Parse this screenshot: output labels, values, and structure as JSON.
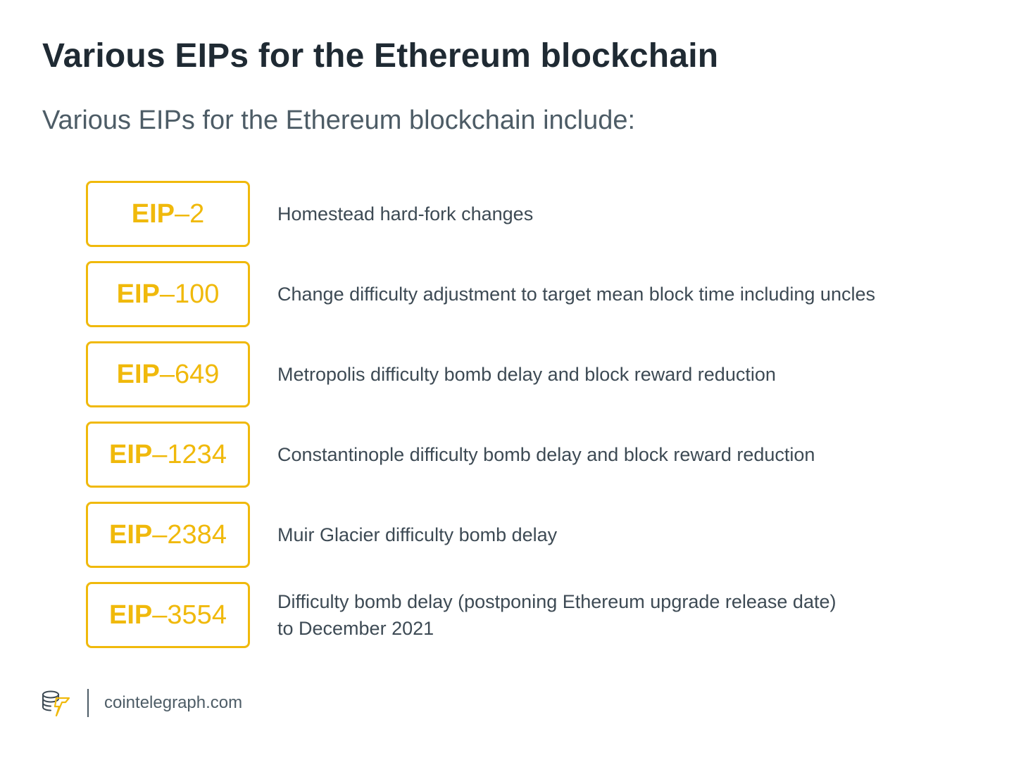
{
  "header": {
    "title": "Various EIPs for the Ethereum blockchain",
    "subtitle": "Various EIPs for the Ethereum blockchain include:"
  },
  "eips": [
    {
      "prefix": "EIP",
      "number": "–2",
      "desc_line1": "Homestead hard-fork changes",
      "desc_line2": ""
    },
    {
      "prefix": "EIP",
      "number": "–100",
      "desc_line1": "Change difficulty adjustment to target mean block time including uncles",
      "desc_line2": ""
    },
    {
      "prefix": "EIP",
      "number": "–649",
      "desc_line1": "Metropolis difficulty bomb delay and block reward reduction",
      "desc_line2": ""
    },
    {
      "prefix": "EIP",
      "number": "–1234",
      "desc_line1": "Constantinople difficulty bomb delay and block reward reduction",
      "desc_line2": ""
    },
    {
      "prefix": "EIP",
      "number": "–2384",
      "desc_line1": "Muir Glacier difficulty bomb delay",
      "desc_line2": ""
    },
    {
      "prefix": "EIP",
      "number": "–3554",
      "desc_line1": "Difficulty bomb delay (postponing Ethereum upgrade release date)",
      "desc_line2": "to December 2021"
    }
  ],
  "footer": {
    "logo_icon": "cointelegraph-logo-icon",
    "site": "cointelegraph.com"
  },
  "colors": {
    "accent": "#f0b90b",
    "title": "#1f2a33",
    "text": "#3d4a54",
    "muted": "#4d5c66"
  }
}
